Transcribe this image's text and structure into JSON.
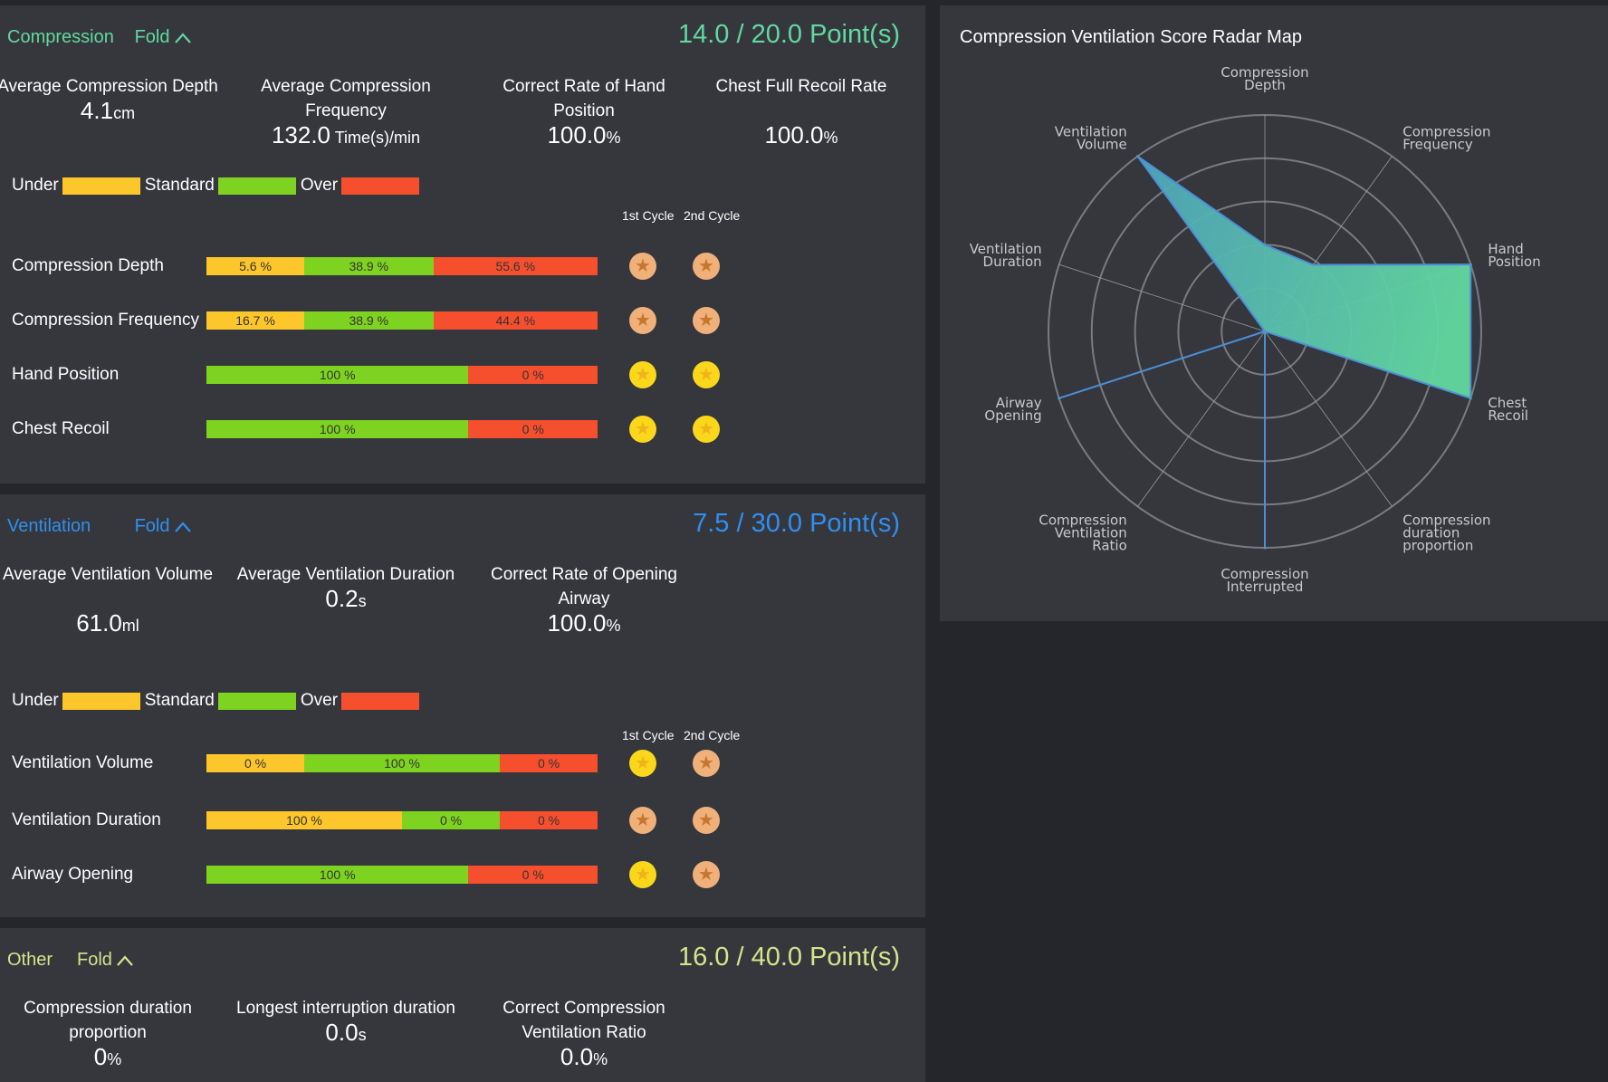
{
  "legend": {
    "under": "Under",
    "standard": "Standard",
    "over": "Over"
  },
  "colors": {
    "under": "#fdc62b",
    "standard": "#7ed321",
    "over": "#f64f2e",
    "gold": "#fbd71c",
    "bronze": "#f0b07a"
  },
  "cycles": {
    "first": "1st Cycle",
    "second": "2nd Cycle"
  },
  "sections": [
    {
      "key": "compression",
      "title": "Compression",
      "fold": "Fold",
      "score": "14.0",
      "total": "20.0",
      "unit": "Point(s)",
      "color": "#5fd9a0",
      "metrics": [
        {
          "label": "Average Compression Depth",
          "value": "4.1",
          "unit": "cm"
        },
        {
          "label": "Average Compression Frequency",
          "value": "132.0",
          "unit": " Time(s)/min"
        },
        {
          "label": "Correct Rate of Hand Position",
          "value": "100.0",
          "unit": "%"
        },
        {
          "label": "Chest Full Recoil Rate",
          "value": "100.0",
          "unit": "%"
        }
      ],
      "rows": [
        {
          "label": "Compression Depth",
          "segments": [
            {
              "kind": "under",
              "text": "5.6 %"
            },
            {
              "kind": "standard",
              "text": "38.9 %"
            },
            {
              "kind": "over",
              "text": "55.6 %"
            }
          ],
          "medals": [
            "bronze",
            "bronze"
          ]
        },
        {
          "label": "Compression Frequency",
          "segments": [
            {
              "kind": "under",
              "text": "16.7 %"
            },
            {
              "kind": "standard",
              "text": "38.9 %"
            },
            {
              "kind": "over",
              "text": "44.4 %"
            }
          ],
          "medals": [
            "bronze",
            "bronze"
          ]
        },
        {
          "label": "Hand Position",
          "segments": [
            {
              "kind": "standard",
              "text": "100 %"
            },
            {
              "kind": "over",
              "text": "0 %"
            }
          ],
          "medals": [
            "gold",
            "gold"
          ]
        },
        {
          "label": "Chest Recoil",
          "segments": [
            {
              "kind": "standard",
              "text": "100 %"
            },
            {
              "kind": "over",
              "text": "0 %"
            }
          ],
          "medals": [
            "gold",
            "gold"
          ]
        }
      ]
    },
    {
      "key": "ventilation",
      "title": "Ventilation",
      "fold": "Fold",
      "score": "7.5",
      "total": "30.0",
      "unit": "Point(s)",
      "color": "#2f8ff0",
      "metrics": [
        {
          "label": "Average Ventilation Volume",
          "value": "61.0",
          "unit": "ml"
        },
        {
          "label": "Average Ventilation Duration",
          "value": "0.2",
          "unit": "s"
        },
        {
          "label": "Correct Rate of Opening Airway",
          "value": "100.0",
          "unit": "%"
        }
      ],
      "rows": [
        {
          "label": "Ventilation Volume",
          "segments": [
            {
              "kind": "under",
              "text": "0 %"
            },
            {
              "kind": "standard",
              "text": "100 %"
            },
            {
              "kind": "over",
              "text": "0 %"
            }
          ],
          "medals": [
            "gold",
            "bronze"
          ]
        },
        {
          "label": "Ventilation Duration",
          "segments": [
            {
              "kind": "under",
              "text": "100 %"
            },
            {
              "kind": "standard",
              "text": "0 %"
            },
            {
              "kind": "over",
              "text": "0 %"
            }
          ],
          "medals": [
            "bronze",
            "bronze"
          ]
        },
        {
          "label": "Airway Opening",
          "segments": [
            {
              "kind": "standard",
              "text": "100 %"
            },
            {
              "kind": "over",
              "text": "0 %"
            }
          ],
          "medals": [
            "gold",
            "bronze"
          ]
        }
      ]
    },
    {
      "key": "other",
      "title": "Other",
      "fold": "Fold",
      "score": "16.0",
      "total": "40.0",
      "unit": "Point(s)",
      "color": "#d3e58a",
      "metrics": [
        {
          "label": "Compression duration proportion",
          "value": "0",
          "unit": "%"
        },
        {
          "label": "Longest interruption duration",
          "value": "0.0",
          "unit": "s"
        },
        {
          "label": "Correct Compression Ventilation Ratio",
          "value": "0.0",
          "unit": "%"
        }
      ],
      "rows": []
    }
  ],
  "chart_data": {
    "type": "radar",
    "title": "Compression Ventilation Score Radar Map",
    "axes": [
      "Compression Depth",
      "Compression Frequency",
      "Hand Position",
      "Chest Recoil",
      "Compression duration proportion",
      "Compression Interrupted",
      "Compression Ventilation Ratio",
      "Airway Opening",
      "Ventilation Duration",
      "Ventilation Volume"
    ],
    "axis_label_lines": [
      [
        "Compression",
        "Depth"
      ],
      [
        "Compression",
        "Frequency"
      ],
      [
        "Hand",
        "Position"
      ],
      [
        "Chest",
        "Recoil"
      ],
      [
        "Compression",
        "duration",
        "proportion"
      ],
      [
        "Compression",
        "Interrupted"
      ],
      [
        "Compression",
        "Ventilation",
        "Ratio"
      ],
      [
        "Airway",
        "Opening"
      ],
      [
        "Ventilation",
        "Duration"
      ],
      [
        "Ventilation",
        "Volume"
      ]
    ],
    "values": [
      0.4,
      0.38,
      1,
      1,
      0,
      1,
      0,
      1,
      0,
      1
    ],
    "range": [
      0,
      1
    ],
    "rings": 5,
    "fill_gradient": [
      "#4a9bc0",
      "#62d8a0"
    ]
  }
}
